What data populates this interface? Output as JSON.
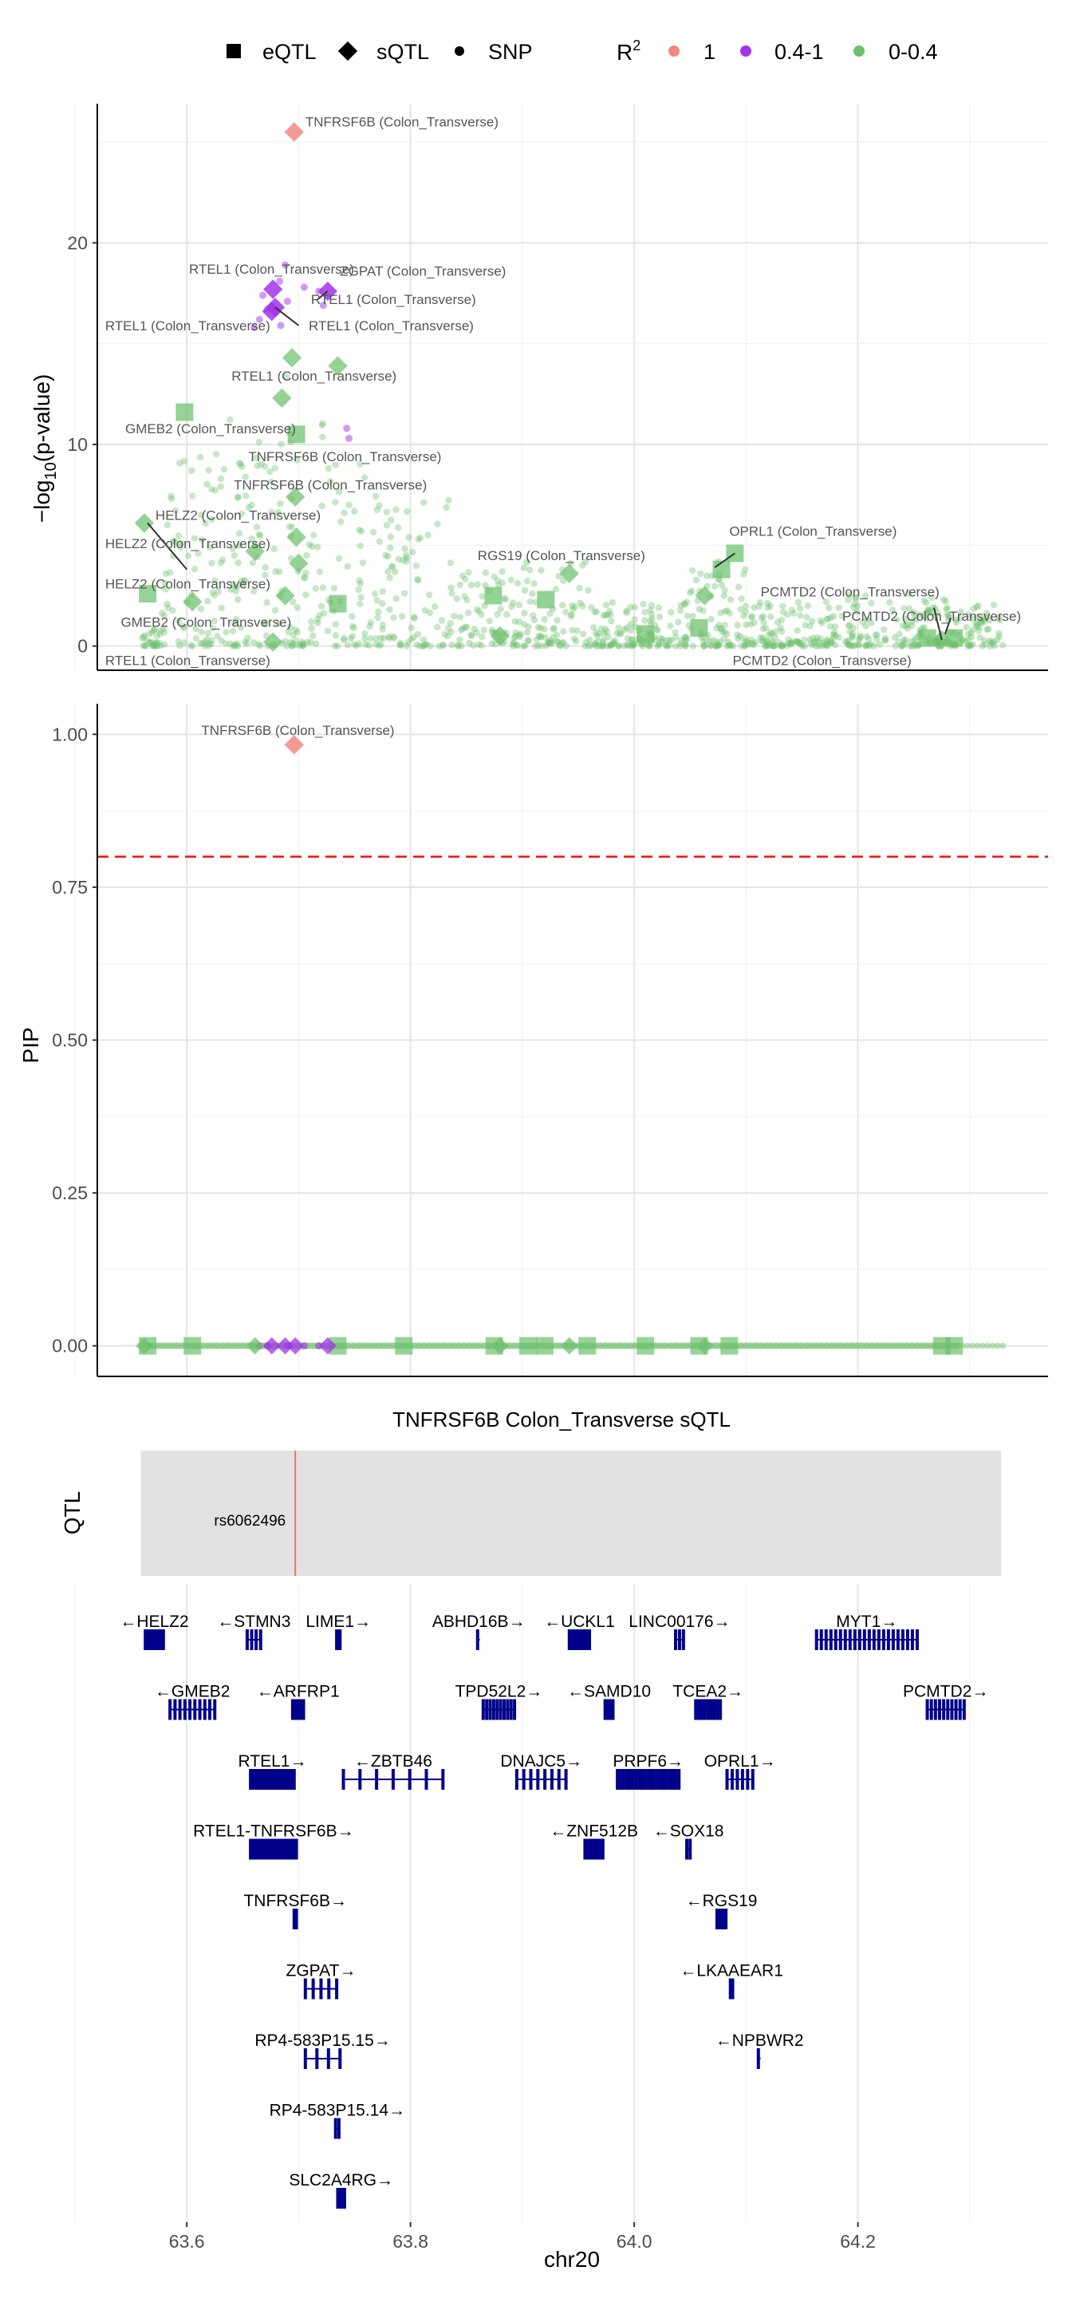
{
  "legend": {
    "shape_items": [
      {
        "label": "eQTL",
        "shape": "square"
      },
      {
        "label": "sQTL",
        "shape": "diamond"
      },
      {
        "label": "SNP",
        "shape": "circle"
      }
    ],
    "r2_title": "R",
    "r2_title_sup": "2",
    "r2_items": [
      {
        "label": "1",
        "color": "#f08a7f"
      },
      {
        "label": "0.4-1",
        "color": "#a233e8"
      },
      {
        "label": "0-0.4",
        "color": "#6cc06c"
      }
    ]
  },
  "colors": {
    "r2_1": "#f08a7f",
    "r2_mid": "#a233e8",
    "r2_low": "#6cc06c",
    "threshold": "#ee1111",
    "qtl_line": "#e5736a",
    "gene": "#00008b",
    "track_bg": "#e2e2e2"
  },
  "chart_data": [
    {
      "type": "scatter",
      "panel": "manhattan",
      "ylabel": "−log10(p-value)",
      "ylabel_main": "−log",
      "ylabel_sub": "10",
      "ylabel_tail": "(p-value)",
      "xlim": [
        63.52,
        64.37
      ],
      "ylim": [
        -1.2,
        26.9
      ],
      "yticks": [
        0,
        10,
        20
      ],
      "ytick_labels": [
        "0",
        "10",
        "20"
      ],
      "points": [
        {
          "x": 63.696,
          "y": 25.5,
          "shape": "diamond",
          "r2": "r2_1"
        },
        {
          "x": 63.677,
          "y": 17.7,
          "shape": "diamond",
          "r2": "r2_mid"
        },
        {
          "x": 63.726,
          "y": 17.6,
          "shape": "diamond",
          "r2": "r2_mid"
        },
        {
          "x": 63.679,
          "y": 16.8,
          "shape": "diamond",
          "r2": "r2_mid"
        },
        {
          "x": 63.676,
          "y": 16.6,
          "shape": "diamond",
          "r2": "r2_mid"
        },
        {
          "x": 63.694,
          "y": 14.3,
          "shape": "diamond",
          "r2": "r2_low"
        },
        {
          "x": 63.735,
          "y": 13.9,
          "shape": "diamond",
          "r2": "r2_low"
        },
        {
          "x": 63.685,
          "y": 12.3,
          "shape": "diamond",
          "r2": "r2_low"
        },
        {
          "x": 63.598,
          "y": 11.6,
          "shape": "square",
          "r2": "r2_low"
        },
        {
          "x": 63.698,
          "y": 10.5,
          "shape": "square",
          "r2": "r2_low"
        },
        {
          "x": 63.697,
          "y": 7.4,
          "shape": "diamond",
          "r2": "r2_low"
        },
        {
          "x": 63.562,
          "y": 6.1,
          "shape": "diamond",
          "r2": "r2_low"
        },
        {
          "x": 63.698,
          "y": 5.4,
          "shape": "diamond",
          "r2": "r2_low"
        },
        {
          "x": 63.661,
          "y": 4.7,
          "shape": "diamond",
          "r2": "r2_low"
        },
        {
          "x": 63.7,
          "y": 4.1,
          "shape": "diamond",
          "r2": "r2_low"
        },
        {
          "x": 63.565,
          "y": 2.6,
          "shape": "square",
          "r2": "r2_low"
        },
        {
          "x": 63.605,
          "y": 2.2,
          "shape": "diamond",
          "r2": "r2_low"
        },
        {
          "x": 63.688,
          "y": 2.5,
          "shape": "diamond",
          "r2": "r2_low"
        },
        {
          "x": 63.735,
          "y": 2.1,
          "shape": "square",
          "r2": "r2_low"
        },
        {
          "x": 63.677,
          "y": 0.2,
          "shape": "diamond",
          "r2": "r2_low"
        },
        {
          "x": 63.942,
          "y": 3.6,
          "shape": "diamond",
          "r2": "r2_low"
        },
        {
          "x": 63.921,
          "y": 2.3,
          "shape": "square",
          "r2": "r2_low"
        },
        {
          "x": 63.874,
          "y": 2.5,
          "shape": "square",
          "r2": "r2_low"
        },
        {
          "x": 63.88,
          "y": 0.5,
          "shape": "diamond",
          "r2": "r2_low"
        },
        {
          "x": 64.09,
          "y": 4.6,
          "shape": "square",
          "r2": "r2_low"
        },
        {
          "x": 64.078,
          "y": 3.8,
          "shape": "square",
          "r2": "r2_low"
        },
        {
          "x": 64.063,
          "y": 2.5,
          "shape": "diamond",
          "r2": "r2_low"
        },
        {
          "x": 64.058,
          "y": 0.9,
          "shape": "square",
          "r2": "r2_low"
        },
        {
          "x": 64.01,
          "y": 0.6,
          "shape": "square",
          "r2": "r2_low"
        },
        {
          "x": 64.275,
          "y": 0.3,
          "shape": "diamond",
          "r2": "r2_low"
        },
        {
          "x": 64.262,
          "y": 0.4,
          "shape": "square",
          "r2": "r2_low"
        },
        {
          "x": 64.286,
          "y": 0.4,
          "shape": "square",
          "r2": "r2_low"
        }
      ],
      "labels": [
        {
          "text": "TNFRSF6B (Colon_Transverse)",
          "x": 63.706,
          "y": 26.0,
          "anchor": "start"
        },
        {
          "text": "RTEL1 (Colon_Transverse)",
          "x": 63.602,
          "y": 18.7,
          "anchor": "start"
        },
        {
          "text": "ZGPAT (Colon_Transverse)",
          "x": 63.737,
          "y": 18.6,
          "anchor": "start"
        },
        {
          "text": "RTEL1 (Colon_Transverse)",
          "x": 63.711,
          "y": 17.2,
          "anchor": "start"
        },
        {
          "text": "RTEL1 (Colon_Transverse)",
          "x": 63.527,
          "y": 15.9,
          "anchor": "start"
        },
        {
          "text": "RTEL1 (Colon_Transverse)",
          "x": 63.709,
          "y": 15.9,
          "anchor": "start"
        },
        {
          "text": "RTEL1 (Colon_Transverse)",
          "x": 63.64,
          "y": 13.4,
          "anchor": "start"
        },
        {
          "text": "GMEB2 (Colon_Transverse)",
          "x": 63.545,
          "y": 10.8,
          "anchor": "start"
        },
        {
          "text": "TNFRSF6B (Colon_Transverse)",
          "x": 63.655,
          "y": 9.4,
          "anchor": "start"
        },
        {
          "text": "TNFRSF6B (Colon_Transverse)",
          "x": 63.642,
          "y": 8.0,
          "anchor": "start"
        },
        {
          "text": "HELZ2 (Colon_Transverse)",
          "x": 63.572,
          "y": 6.5,
          "anchor": "start"
        },
        {
          "text": "HELZ2 (Colon_Transverse)",
          "x": 63.527,
          "y": 5.1,
          "anchor": "start"
        },
        {
          "text": "HELZ2 (Colon_Transverse)",
          "x": 63.527,
          "y": 3.1,
          "anchor": "start"
        },
        {
          "text": "GMEB2 (Colon_Transverse)",
          "x": 63.541,
          "y": 1.2,
          "anchor": "start"
        },
        {
          "text": "RTEL1 (Colon_Transverse)",
          "x": 63.527,
          "y": -0.7,
          "anchor": "start"
        },
        {
          "text": "RGS19 (Colon_Transverse)",
          "x": 63.86,
          "y": 4.5,
          "anchor": "start"
        },
        {
          "text": "OPRL1 (Colon_Transverse)",
          "x": 64.085,
          "y": 5.7,
          "anchor": "start"
        },
        {
          "text": "PCMTD2 (Colon_Transverse)",
          "x": 64.113,
          "y": 2.7,
          "anchor": "start"
        },
        {
          "text": "PCMTD2 (Colon_Transverse)",
          "x": 64.186,
          "y": 1.5,
          "anchor": "start"
        },
        {
          "text": "PCMTD2 (Colon_Transverse)",
          "x": 64.088,
          "y": -0.7,
          "anchor": "start"
        }
      ]
    },
    {
      "type": "scatter",
      "panel": "pip",
      "ylabel": "PIP",
      "xlim": [
        63.52,
        64.37
      ],
      "ylim": [
        -0.05,
        1.05
      ],
      "yticks": [
        0,
        0.25,
        0.5,
        0.75,
        1
      ],
      "ytick_labels": [
        "0.00",
        "0.25",
        "0.50",
        "0.75",
        "1.00"
      ],
      "threshold": 0.8,
      "points": [
        {
          "x": 63.696,
          "y": 0.983,
          "shape": "diamond",
          "r2": "r2_1"
        }
      ],
      "zero_row_squares": [
        63.565,
        63.605,
        63.735,
        63.794,
        63.875,
        63.905,
        63.92,
        63.958,
        64.01,
        64.058,
        64.085,
        64.275,
        64.286
      ],
      "zero_row_diamonds": [
        63.562,
        63.661,
        63.676,
        63.688,
        63.697,
        63.726,
        63.88,
        63.942,
        64.063
      ],
      "labels": [
        {
          "text": "TNFRSF6B (Colon_Transverse)",
          "x": 63.613,
          "y": 1.007,
          "anchor": "start"
        }
      ]
    },
    {
      "type": "table",
      "panel": "qtl_track",
      "title": "TNFRSF6B Colon_Transverse sQTL",
      "ylabel": "QTL",
      "track_range": [
        63.559,
        64.328
      ],
      "variant": {
        "name": "rs6062496",
        "x": 63.697
      }
    },
    {
      "type": "table",
      "panel": "genes",
      "xlabel": "chr20",
      "xlim": [
        63.52,
        64.37
      ],
      "xticks": [
        63.6,
        63.8,
        64.0,
        64.2
      ],
      "xtick_labels": [
        "63.6",
        "63.8",
        "64.0",
        "64.2"
      ],
      "genes": [
        {
          "name": "HELZ2",
          "start": 63.564,
          "end": 63.578,
          "row": 0,
          "dir": "-",
          "exons": 8
        },
        {
          "name": "STMN3",
          "start": 63.654,
          "end": 63.666,
          "row": 0,
          "dir": "-",
          "exons": 4
        },
        {
          "name": "LIME1",
          "start": 63.734,
          "end": 63.737,
          "row": 0,
          "dir": "+",
          "exons": 3
        },
        {
          "name": "ABHD16B",
          "start": 63.86,
          "end": 63.862,
          "row": 0,
          "dir": "+",
          "exons": 1
        },
        {
          "name": "UCKL1",
          "start": 63.942,
          "end": 63.96,
          "row": 0,
          "dir": "-",
          "exons": 8
        },
        {
          "name": "LINC00176",
          "start": 64.037,
          "end": 64.044,
          "row": 0,
          "dir": "+",
          "exons": 3
        },
        {
          "name": "MYT1",
          "start": 64.163,
          "end": 64.253,
          "row": 0,
          "dir": "+",
          "exons": 22
        },
        {
          "name": "GMEB2",
          "start": 63.585,
          "end": 63.625,
          "row": 1,
          "dir": "-",
          "exons": 10
        },
        {
          "name": "ARFRP1",
          "start": 63.695,
          "end": 63.704,
          "row": 1,
          "dir": "-",
          "exons": 7
        },
        {
          "name": "TPD52L2",
          "start": 63.865,
          "end": 63.893,
          "row": 1,
          "dir": "+",
          "exons": 10
        },
        {
          "name": "SAMD10",
          "start": 63.974,
          "end": 63.981,
          "row": 1,
          "dir": "-",
          "exons": 4
        },
        {
          "name": "TCEA2",
          "start": 64.055,
          "end": 64.077,
          "row": 1,
          "dir": "+",
          "exons": 9
        },
        {
          "name": "PCMTD2",
          "start": 64.262,
          "end": 64.295,
          "row": 1,
          "dir": "+",
          "exons": 10
        },
        {
          "name": "RTEL1",
          "start": 63.657,
          "end": 63.696,
          "row": 2,
          "dir": "+",
          "exons": 22
        },
        {
          "name": "ZBTB46",
          "start": 63.74,
          "end": 63.829,
          "row": 2,
          "dir": "-",
          "exons": 7
        },
        {
          "name": "DNAJC5",
          "start": 63.895,
          "end": 63.939,
          "row": 2,
          "dir": "+",
          "exons": 8
        },
        {
          "name": "PRPF6",
          "start": 63.985,
          "end": 64.04,
          "row": 2,
          "dir": "+",
          "exons": 21
        },
        {
          "name": "OPRL1",
          "start": 64.083,
          "end": 64.106,
          "row": 2,
          "dir": "+",
          "exons": 6
        },
        {
          "name": "RTEL1-TNFRSF6B",
          "start": 63.657,
          "end": 63.698,
          "row": 3,
          "dir": "+",
          "exons": 22
        },
        {
          "name": "ZNF512B",
          "start": 63.956,
          "end": 63.972,
          "row": 3,
          "dir": "-",
          "exons": 11
        },
        {
          "name": "SOX18",
          "start": 64.047,
          "end": 64.05,
          "row": 3,
          "dir": "-",
          "exons": 2
        },
        {
          "name": "TNFRSF6B",
          "start": 63.696,
          "end": 63.698,
          "row": 4,
          "dir": "+",
          "exons": 3
        },
        {
          "name": "RGS19",
          "start": 64.074,
          "end": 64.082,
          "row": 4,
          "dir": "-",
          "exons": 5
        },
        {
          "name": "ZGPAT",
          "start": 63.706,
          "end": 63.734,
          "row": 5,
          "dir": "+",
          "exons": 5
        },
        {
          "name": "LKAAEAR1",
          "start": 64.086,
          "end": 64.088,
          "row": 5,
          "dir": "-",
          "exons": 2
        },
        {
          "name": "RP4-583P15.15",
          "start": 63.706,
          "end": 63.737,
          "row": 6,
          "dir": "+",
          "exons": 4
        },
        {
          "name": "NPBWR2",
          "start": 64.111,
          "end": 64.113,
          "row": 6,
          "dir": "-",
          "exons": 1
        },
        {
          "name": "RP4-583P15.14",
          "start": 63.733,
          "end": 63.736,
          "row": 7,
          "dir": "+",
          "exons": 2
        },
        {
          "name": "SLC2A4RG",
          "start": 63.735,
          "end": 63.741,
          "row": 8,
          "dir": "+",
          "exons": 6
        }
      ]
    }
  ]
}
